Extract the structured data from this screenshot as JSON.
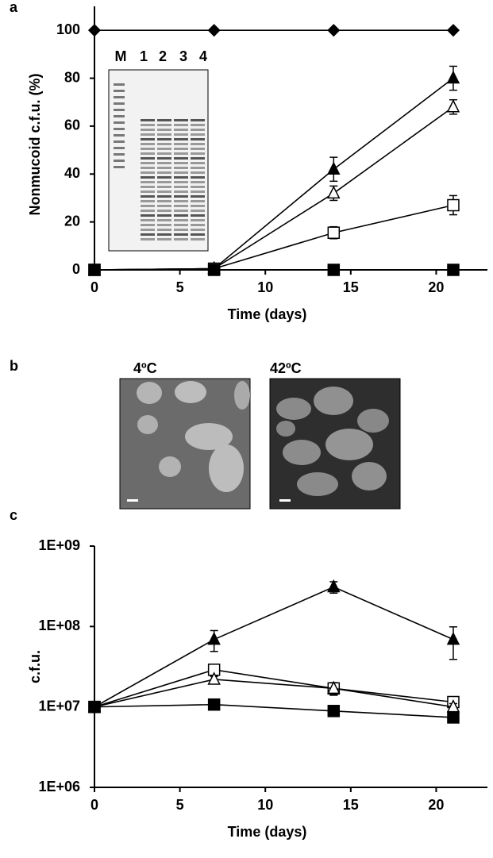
{
  "chart_data": [
    {
      "type": "line",
      "panel": "a",
      "ylabel": "Nonmucoid c.f.u. (%)",
      "xlabel": "Time (days)",
      "x": [
        0,
        7,
        14,
        21
      ],
      "xlim": [
        0,
        23
      ],
      "xticks": [
        0,
        5,
        10,
        15,
        20
      ],
      "ylim": [
        0,
        110
      ],
      "yticks": [
        0,
        20,
        40,
        60,
        80,
        100
      ],
      "log": false,
      "series": [
        {
          "marker": "diamond",
          "filled": true,
          "color": "#000000",
          "values": [
            100,
            100,
            100,
            100
          ]
        },
        {
          "marker": "triangle",
          "filled": true,
          "color": "#000000",
          "values": [
            0,
            0.5,
            42,
            80
          ],
          "errors": [
            0,
            0,
            5,
            5
          ]
        },
        {
          "marker": "triangle",
          "filled": false,
          "color": "#000000",
          "values": [
            0,
            0.5,
            32,
            68
          ],
          "errors": [
            0,
            0,
            3,
            3
          ]
        },
        {
          "marker": "square",
          "filled": false,
          "color": "#000000",
          "values": [
            0,
            0.5,
            15.5,
            27
          ],
          "errors": [
            0,
            0,
            2.5,
            4
          ]
        },
        {
          "marker": "square",
          "filled": true,
          "color": "#000000",
          "values": [
            0,
            0,
            0,
            0
          ]
        }
      ],
      "inset": {
        "lanes": [
          "M",
          "1",
          "2",
          "3",
          "4"
        ]
      }
    },
    {
      "type": "line",
      "panel": "c",
      "ylabel": "c.f.u.",
      "xlabel": "Time (days)",
      "x": [
        0,
        7,
        14,
        21
      ],
      "xlim": [
        0,
        23
      ],
      "xticks": [
        0,
        5,
        10,
        15,
        20
      ],
      "ylim": [
        1000000,
        1000000000
      ],
      "log": true,
      "yticks": [
        {
          "value": 1000000,
          "label": "1E+06"
        },
        {
          "value": 10000000,
          "label": "1E+07"
        },
        {
          "value": 100000000,
          "label": "1E+08"
        },
        {
          "value": 1000000000,
          "label": "1E+09"
        }
      ],
      "series": [
        {
          "marker": "triangle",
          "filled": true,
          "color": "#000000",
          "values": [
            10000000,
            69000000,
            310000000,
            69000000
          ],
          "errors": [
            0,
            20000000,
            50000000,
            30000000
          ]
        },
        {
          "marker": "square",
          "filled": false,
          "color": "#000000",
          "values": [
            10000000,
            29000000,
            17000000,
            11500000
          ],
          "errors": [
            0,
            2000000,
            3000000,
            1000000
          ]
        },
        {
          "marker": "triangle",
          "filled": false,
          "color": "#000000",
          "values": [
            10000000,
            22000000,
            17000000,
            10000000
          ],
          "errors": [
            0,
            2000000,
            3000000,
            1000000
          ]
        },
        {
          "marker": "square",
          "filled": true,
          "color": "#000000",
          "values": [
            10000000,
            10700000,
            8900000,
            7400000
          ]
        }
      ]
    }
  ],
  "panel_b": {
    "panel": "b",
    "images": [
      {
        "label": "4ºC"
      },
      {
        "label": "42ºC"
      }
    ]
  }
}
